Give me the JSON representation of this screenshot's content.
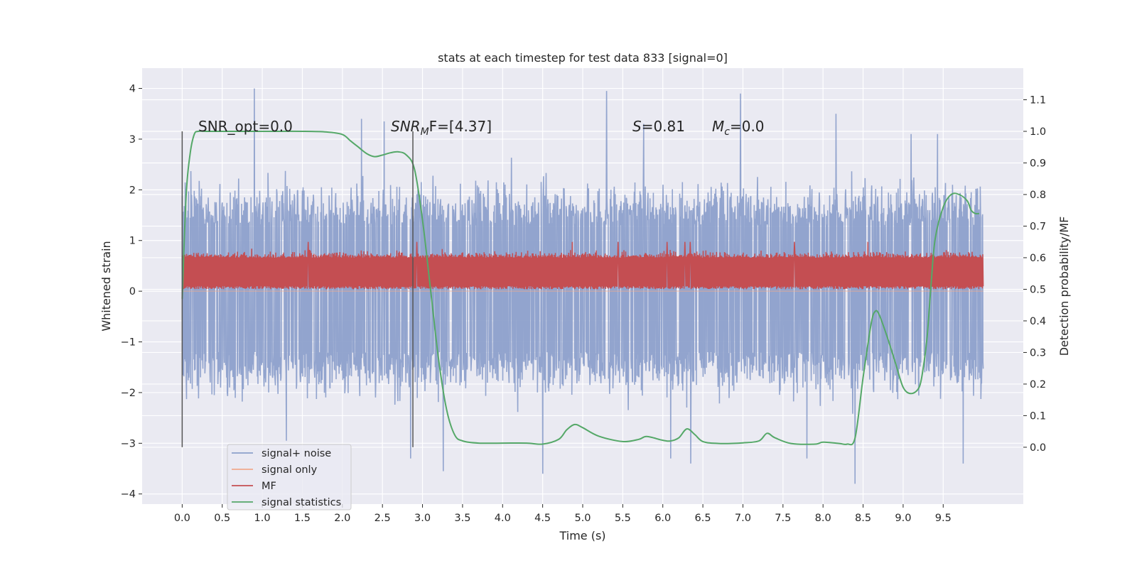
{
  "chart_data": {
    "type": "line",
    "title": "stats at each timestep for test data 833 [signal=0]",
    "xlabel": "Time (s)",
    "ylabel": "Whitened strain",
    "y2label": "Detection probability/MF",
    "xlim": [
      -0.5,
      10.5
    ],
    "ylim": [
      -4.2,
      4.4
    ],
    "y2lim": [
      -0.18,
      1.2
    ],
    "x_ticks": [
      0.0,
      0.5,
      1.0,
      1.5,
      2.0,
      2.5,
      3.0,
      3.5,
      4.0,
      4.5,
      5.0,
      5.5,
      6.0,
      6.5,
      7.0,
      7.5,
      8.0,
      8.5,
      9.0,
      9.5
    ],
    "x_tick_labels": [
      "0.0",
      "0.5",
      "1.0",
      "1.5",
      "2.0",
      "2.5",
      "3.0",
      "3.5",
      "4.0",
      "4.5",
      "5.0",
      "5.5",
      "6.0",
      "6.5",
      "7.0",
      "7.5",
      "8.0",
      "8.5",
      "9.0",
      "9.5"
    ],
    "y_ticks": [
      -4,
      -3,
      -2,
      -1,
      0,
      1,
      2,
      3,
      4
    ],
    "y_tick_labels": [
      "−4",
      "−3",
      "−2",
      "−1",
      "0",
      "1",
      "2",
      "3",
      "4"
    ],
    "y2_ticks": [
      0.0,
      0.1,
      0.2,
      0.3,
      0.4,
      0.5,
      0.6,
      0.7,
      0.8,
      0.9,
      1.0,
      1.1
    ],
    "y2_tick_labels": [
      "0.0",
      "0.1",
      "0.2",
      "0.3",
      "0.4",
      "0.5",
      "0.6",
      "0.7",
      "0.8",
      "0.9",
      "1.0",
      "1.1"
    ],
    "grid": true,
    "legend_position": "lower-left",
    "legend": [
      {
        "label": "signal+ noise",
        "color": "#8da0cb"
      },
      {
        "label": "signal only",
        "color": "#f0a98e"
      },
      {
        "label": "MF",
        "color": "#c44e52"
      },
      {
        "label": "signal statistics",
        "color": "#55a868"
      }
    ],
    "annotations": {
      "snr_opt": "SNR_opt=0.0",
      "snr_mf_pre": "SNR",
      "snr_mf_sub": "M",
      "snr_mf_post": "F=[4.37]",
      "s_var": "S",
      "s_val": "=0.81",
      "mc_var": "M",
      "mc_sub": "c",
      "mc_val": "=0.0"
    },
    "vlines_x": [
      0.0,
      2.88
    ],
    "series": [
      {
        "name": "signal+ noise",
        "axis": "left",
        "color": "#8da0cb",
        "x_range": [
          0.0,
          10.0
        ],
        "typical_band": [
          -1.2,
          1.3
        ],
        "extremes": [
          -3.6,
          4.0
        ],
        "peaks": [
          [
            0.9,
            4.0
          ],
          [
            2.24,
            3.4
          ],
          [
            2.52,
            3.35
          ],
          [
            5.3,
            3.95
          ],
          [
            5.76,
            3.3
          ],
          [
            6.97,
            3.9
          ],
          [
            8.16,
            3.5
          ],
          [
            9.1,
            3.1
          ],
          [
            9.43,
            3.1
          ],
          [
            1.3,
            -2.95
          ],
          [
            2.85,
            -3.3
          ],
          [
            3.26,
            -3.55
          ],
          [
            4.5,
            -3.6
          ],
          [
            6.1,
            -3.3
          ],
          [
            6.35,
            -3.4
          ],
          [
            7.8,
            -3.3
          ],
          [
            8.4,
            -3.8
          ],
          [
            9.75,
            -3.4
          ]
        ]
      },
      {
        "name": "signal only",
        "axis": "left",
        "color": "#f0a98e",
        "x": [
          0.0,
          10.0
        ],
        "y": [
          0.0,
          0.0
        ]
      },
      {
        "name": "MF",
        "axis": "right",
        "color": "#c44e52",
        "x_range": [
          0.0,
          10.0
        ],
        "typical_band": [
          0.5,
          0.6
        ],
        "max": 0.65
      },
      {
        "name": "signal statistics",
        "axis": "right",
        "color": "#55a868",
        "x": [
          0.0,
          0.05,
          0.1,
          0.15,
          0.2,
          0.3,
          0.5,
          1.0,
          1.5,
          1.8,
          2.0,
          2.1,
          2.2,
          2.3,
          2.4,
          2.5,
          2.6,
          2.7,
          2.8,
          2.9,
          3.0,
          3.1,
          3.2,
          3.3,
          3.4,
          3.5,
          3.7,
          4.0,
          4.3,
          4.5,
          4.7,
          4.8,
          4.9,
          5.0,
          5.2,
          5.5,
          5.7,
          5.8,
          6.0,
          6.1,
          6.2,
          6.3,
          6.4,
          6.5,
          6.7,
          7.0,
          7.2,
          7.3,
          7.4,
          7.6,
          7.9,
          8.0,
          8.2,
          8.3,
          8.4,
          8.5,
          8.6,
          8.65,
          8.7,
          8.8,
          8.9,
          9.0,
          9.1,
          9.2,
          9.25,
          9.3,
          9.35,
          9.4,
          9.5,
          9.6,
          9.7,
          9.8,
          9.85,
          9.9,
          9.95
        ],
        "y": [
          0.47,
          0.8,
          0.93,
          0.99,
          1.0,
          1.0,
          1.0,
          1.0,
          1.0,
          0.998,
          0.99,
          0.97,
          0.95,
          0.93,
          0.92,
          0.925,
          0.932,
          0.935,
          0.925,
          0.88,
          0.72,
          0.5,
          0.28,
          0.12,
          0.04,
          0.02,
          0.013,
          0.013,
          0.013,
          0.01,
          0.025,
          0.055,
          0.072,
          0.062,
          0.035,
          0.018,
          0.025,
          0.034,
          0.022,
          0.02,
          0.03,
          0.058,
          0.04,
          0.018,
          0.012,
          0.014,
          0.02,
          0.044,
          0.03,
          0.012,
          0.01,
          0.016,
          0.012,
          0.01,
          0.03,
          0.22,
          0.39,
          0.43,
          0.42,
          0.35,
          0.27,
          0.19,
          0.17,
          0.19,
          0.25,
          0.35,
          0.52,
          0.66,
          0.76,
          0.8,
          0.8,
          0.78,
          0.75,
          0.74,
          0.74
        ]
      }
    ]
  }
}
